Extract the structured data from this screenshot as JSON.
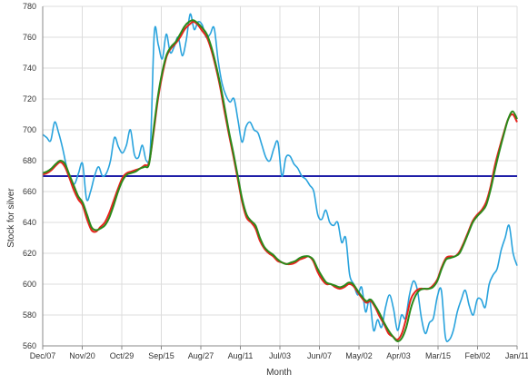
{
  "chart_data": {
    "type": "line",
    "title": "",
    "xlabel": "Month",
    "ylabel": "Stock for silver",
    "ylim": [
      560,
      780
    ],
    "yticks": [
      560,
      580,
      600,
      620,
      640,
      660,
      680,
      700,
      720,
      740,
      760,
      780
    ],
    "x_tick_labels": [
      "Dec/07",
      "Nov/20",
      "Oct/29",
      "Sep/15",
      "Aug/27",
      "Aug/11",
      "Jul/03",
      "Jun/07",
      "May/02",
      "Apr/03",
      "Mar/15",
      "Feb/02",
      "Jan/11"
    ],
    "grid": true,
    "legend": "none",
    "reference_line": {
      "value": 670,
      "color": "#1f1fa8"
    },
    "series": [
      {
        "color": "#29a3dd",
        "values": [
          697,
          695,
          693,
          705,
          698,
          688,
          676,
          668,
          665,
          672,
          678,
          655,
          660,
          670,
          676,
          670,
          672,
          680,
          695,
          689,
          685,
          690,
          700,
          684,
          682,
          690,
          680,
          688,
          763,
          755,
          746,
          762,
          750,
          754,
          760,
          748,
          758,
          775,
          765,
          770,
          768,
          760,
          762,
          766,
          745,
          730,
          722,
          718,
          720,
          706,
          692,
          702,
          705,
          700,
          698,
          690,
          682,
          680,
          688,
          692,
          670,
          682,
          683,
          678,
          675,
          670,
          668,
          664,
          660,
          645,
          642,
          648,
          640,
          638,
          640,
          627,
          630,
          606,
          600,
          593,
          598,
          582,
          590,
          570,
          577,
          572,
          585,
          593,
          584,
          570,
          580,
          578,
          593,
          602,
          596,
          578,
          568,
          575,
          578,
          592,
          596,
          566,
          564,
          570,
          582,
          590,
          596,
          586,
          580,
          590,
          590,
          585,
          600,
          606,
          610,
          622,
          630,
          638,
          620,
          612
        ]
      },
      {
        "color": "#e8231e",
        "values": [
          671,
          672,
          674,
          677,
          679,
          676,
          669,
          661,
          655,
          651,
          642,
          635,
          634,
          637,
          640,
          646,
          654,
          662,
          669,
          672,
          673,
          674,
          675,
          677,
          679,
          698,
          720,
          736,
          748,
          753,
          756,
          760,
          765,
          768,
          770,
          768,
          764,
          760,
          752,
          741,
          728,
          712,
          697,
          683,
          668,
          653,
          643,
          640,
          636,
          628,
          623,
          620,
          618,
          615,
          614,
          613,
          613,
          614,
          616,
          617,
          618,
          615,
          608,
          603,
          600,
          600,
          598,
          597,
          598,
          600,
          599,
          595,
          591,
          588,
          589,
          585,
          579,
          574,
          568,
          566,
          564,
          568,
          578,
          590,
          595,
          597,
          597,
          597,
          599,
          603,
          611,
          617,
          618,
          618,
          621,
          627,
          634,
          641,
          645,
          648,
          653,
          663,
          677,
          688,
          698,
          707,
          710,
          705
        ]
      },
      {
        "color": "#2a8a1a",
        "values": [
          672,
          673,
          675,
          678,
          680,
          678,
          671,
          664,
          657,
          653,
          645,
          637,
          635,
          636,
          638,
          643,
          651,
          660,
          667,
          671,
          672,
          673,
          675,
          676,
          678,
          700,
          722,
          738,
          749,
          754,
          757,
          762,
          767,
          770,
          771,
          769,
          766,
          762,
          754,
          743,
          730,
          715,
          699,
          685,
          670,
          655,
          645,
          641,
          638,
          630,
          624,
          621,
          619,
          616,
          614,
          613,
          614,
          615,
          617,
          618,
          618,
          616,
          610,
          605,
          601,
          600,
          599,
          598,
          599,
          601,
          600,
          596,
          592,
          589,
          590,
          586,
          581,
          575,
          570,
          566,
          563,
          565,
          572,
          584,
          592,
          596,
          597,
          597,
          598,
          602,
          610,
          616,
          617,
          618,
          620,
          626,
          633,
          640,
          644,
          647,
          651,
          661,
          674,
          686,
          697,
          707,
          712,
          707
        ]
      }
    ]
  }
}
